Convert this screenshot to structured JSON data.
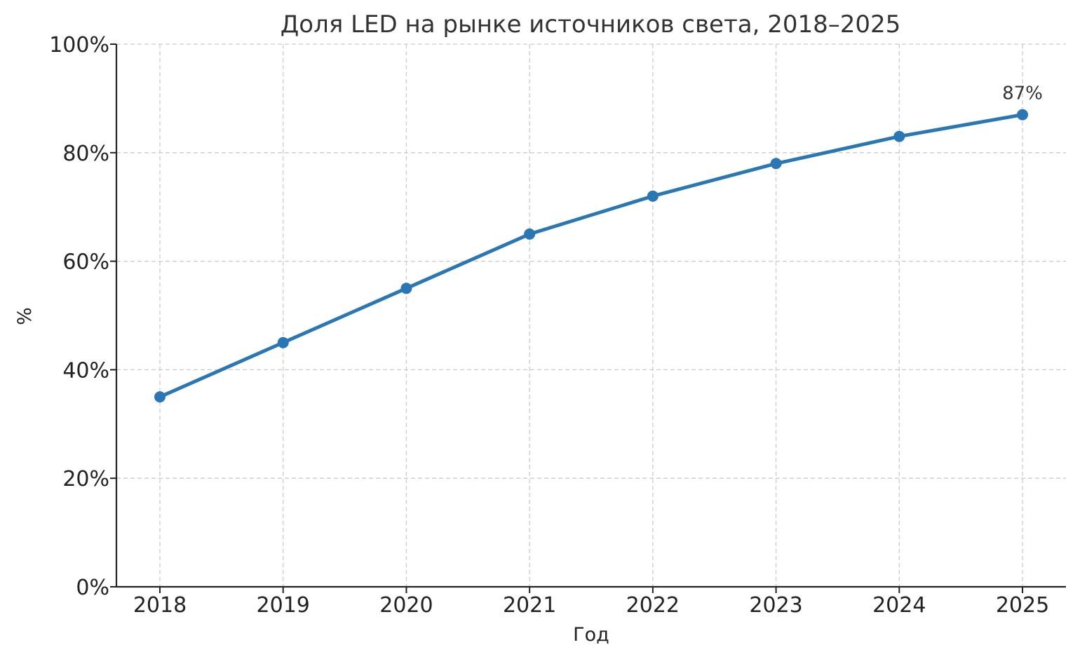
{
  "chart_data": {
    "type": "line",
    "title": "Доля LED на рынке источников света, 2018–2025",
    "xlabel": "Год",
    "ylabel": "%",
    "categories": [
      "2018",
      "2019",
      "2020",
      "2021",
      "2022",
      "2023",
      "2024",
      "2025"
    ],
    "series": [
      {
        "values": [
          35,
          45,
          55,
          65,
          72,
          78,
          83,
          87
        ],
        "color": "#2a77b4"
      }
    ],
    "ylim": [
      0,
      100
    ],
    "y_ticks": [
      0,
      20,
      40,
      60,
      80,
      100
    ],
    "y_tick_labels": [
      "0%",
      "20%",
      "40%",
      "60%",
      "80%",
      "100%"
    ],
    "annotations": [
      {
        "category": "2025",
        "value": 87,
        "text": "87%"
      }
    ],
    "grid": true,
    "legend": "none"
  }
}
